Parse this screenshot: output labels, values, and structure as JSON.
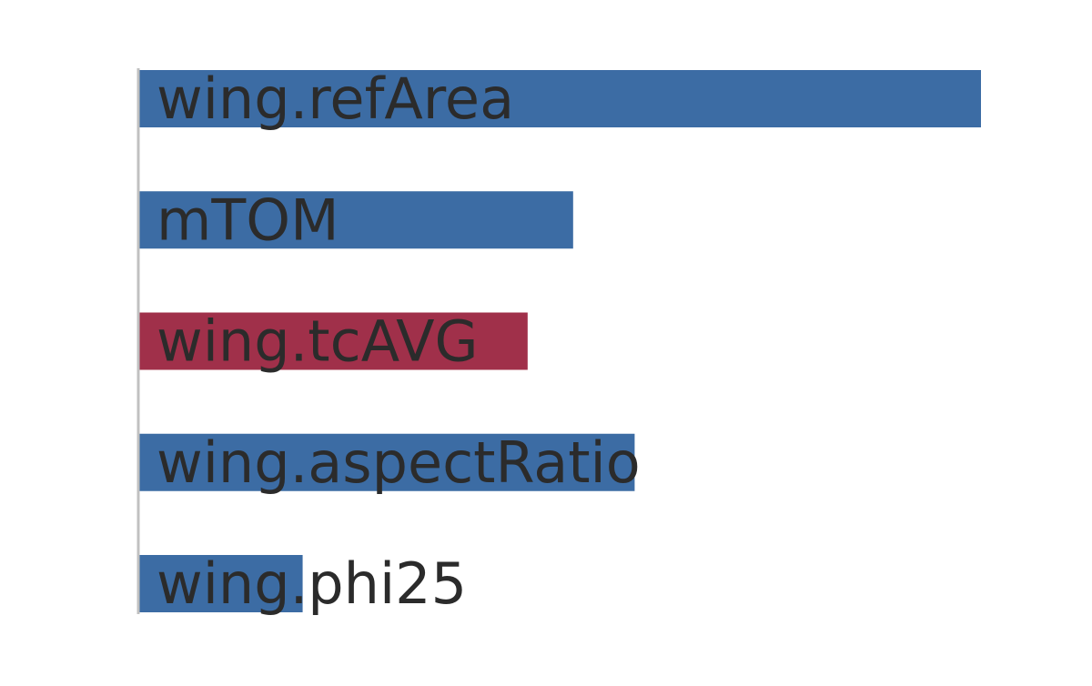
{
  "chart_data": {
    "type": "bar",
    "orientation": "horizontal",
    "title": "",
    "xlabel": "",
    "ylabel": "",
    "categories": [
      "wing.refArea",
      "mTOM",
      "wing.tcAVG",
      "wing.aspectRatio",
      "wing.phi25"
    ],
    "values": [
      1.0,
      0.516,
      0.462,
      0.589,
      0.195
    ],
    "sign": [
      "positive",
      "positive",
      "negative",
      "positive",
      "positive"
    ],
    "xlim": [
      0,
      1.0
    ],
    "grid": false,
    "legend": "none",
    "axis_labels_visible": false
  },
  "colors": {
    "positive": "#3c6ca4",
    "negative": "#a0304a",
    "axis_line": "#c0c0c0",
    "label_text": "#2b2b2b",
    "background": "#ffffff"
  }
}
